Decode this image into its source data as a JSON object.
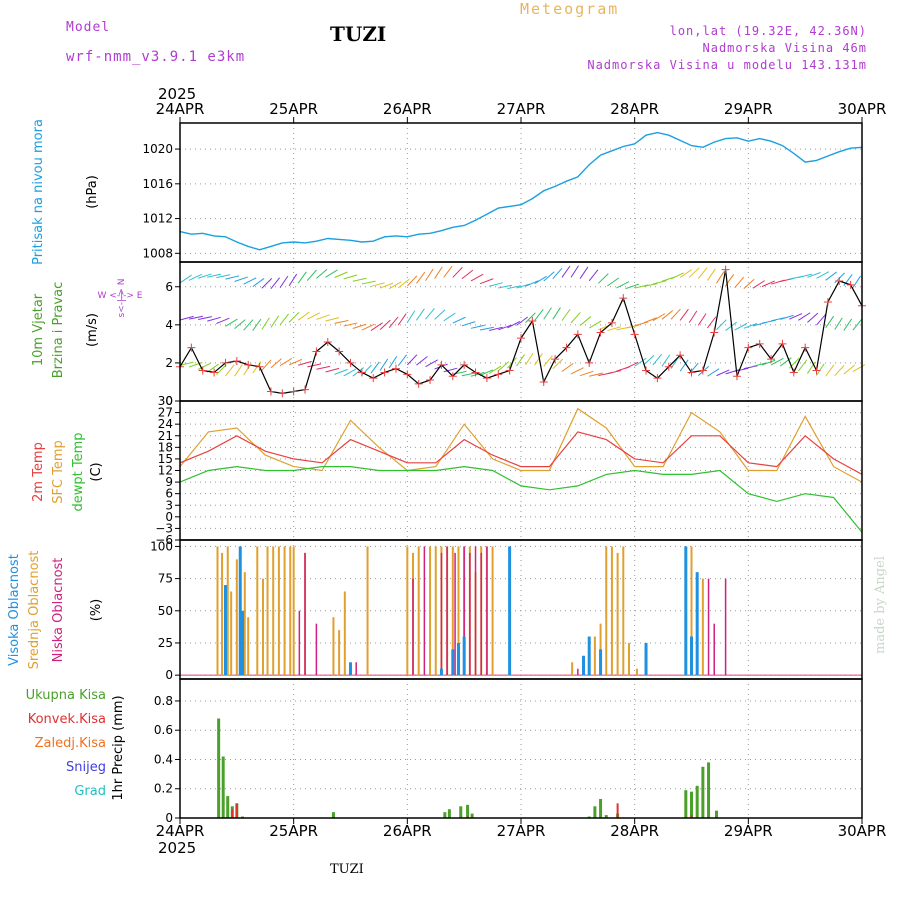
{
  "header": {
    "model_label": "Model",
    "model_name": "wrf-nmm_v3.9.1 e3km",
    "title": "TUZI",
    "meteogram": "Meteogram",
    "lonlat": "lon,lat (19.32E, 42.36N)",
    "elevation": "Nadmorska Visina 46m",
    "elevation_model": "Nadmorska Visina u modelu 143.131m"
  },
  "footer": {
    "station": "TUZI",
    "made_by": "made by Angel"
  },
  "colors": {
    "pressure": "#1aa0e0",
    "temp2m": "#e84040",
    "sfc": "#e0a030",
    "dew": "#30c030",
    "high": "#2090e0",
    "mid": "#e0a030",
    "low": "#d02080",
    "total": "#4aa02a",
    "conv": "#e03030",
    "strat": "#f07020",
    "snow": "#4040e0",
    "grad": "#20c0c0",
    "wind_label": "#b040d0",
    "uvw": "#30b030"
  },
  "chart_data": [
    {
      "id": "pressure",
      "type": "line",
      "ylabel": [
        "Pritisak na nivou mora",
        "(hPa)"
      ],
      "yticks": [
        1008,
        1012,
        1016,
        1020
      ],
      "ylim": [
        1007,
        1023
      ],
      "x_days": [
        "24APR",
        "25APR",
        "26APR",
        "27APR",
        "28APR",
        "29APR",
        "30APR"
      ],
      "year": "2025",
      "series": [
        {
          "name": "SLP",
          "x": [
            0,
            0.1,
            0.2,
            0.3,
            0.4,
            0.5,
            0.6,
            0.7,
            0.8,
            0.9,
            1.0,
            1.1,
            1.2,
            1.3,
            1.4,
            1.5,
            1.6,
            1.7,
            1.8,
            1.9,
            2.0,
            2.1,
            2.2,
            2.3,
            2.4,
            2.5,
            2.6,
            2.7,
            2.8,
            2.9,
            3.0,
            3.1,
            3.2,
            3.3,
            3.4,
            3.5,
            3.6,
            3.7,
            3.8,
            3.9,
            4.0,
            4.1,
            4.2,
            4.3,
            4.4,
            4.5,
            4.6,
            4.7,
            4.8,
            4.9,
            5.0,
            5.1,
            5.2,
            5.3,
            5.4,
            5.5,
            5.6,
            5.7,
            5.8,
            5.9,
            6.0
          ],
          "values": [
            1010.5,
            1010.2,
            1010.3,
            1010.0,
            1009.9,
            1009.3,
            1008.8,
            1008.4,
            1008.8,
            1009.2,
            1009.3,
            1009.2,
            1009.4,
            1009.7,
            1009.6,
            1009.5,
            1009.3,
            1009.4,
            1009.9,
            1010.0,
            1009.9,
            1010.2,
            1010.3,
            1010.6,
            1011.0,
            1011.2,
            1011.8,
            1012.5,
            1013.2,
            1013.4,
            1013.6,
            1014.3,
            1015.2,
            1015.7,
            1016.3,
            1016.8,
            1018.2,
            1019.3,
            1019.8,
            1020.3,
            1020.6,
            1021.6,
            1021.9,
            1021.6,
            1021.0,
            1020.4,
            1020.2,
            1020.8,
            1021.2,
            1021.3,
            1020.9,
            1021.2,
            1020.9,
            1020.4,
            1019.5,
            1018.5,
            1018.7,
            1019.2,
            1019.7,
            1020.1,
            1020.2
          ]
        }
      ]
    },
    {
      "id": "wind",
      "type": "line",
      "ylabel": [
        "10m Vjetar",
        "Brzina i Pravac",
        "(m/s)"
      ],
      "direction_legend": "W <-|-> E",
      "direction_side": "s<-|-> N",
      "yticks": [
        0,
        2,
        4,
        6
      ],
      "ylim": [
        0,
        7.3
      ],
      "series": [
        {
          "name": "Wind speed",
          "x": [
            0,
            0.1,
            0.2,
            0.3,
            0.4,
            0.5,
            0.6,
            0.7,
            0.8,
            0.9,
            1.0,
            1.1,
            1.2,
            1.3,
            1.4,
            1.5,
            1.6,
            1.7,
            1.8,
            1.9,
            2.0,
            2.1,
            2.2,
            2.3,
            2.4,
            2.5,
            2.6,
            2.7,
            2.8,
            2.9,
            3.0,
            3.1,
            3.2,
            3.3,
            3.4,
            3.5,
            3.6,
            3.7,
            3.8,
            3.9,
            4.0,
            4.1,
            4.2,
            4.3,
            4.4,
            4.5,
            4.6,
            4.7,
            4.8,
            4.9,
            5.0,
            5.1,
            5.2,
            5.3,
            5.4,
            5.5,
            5.6,
            5.7,
            5.8,
            5.9,
            6.0
          ],
          "values": [
            1.8,
            2.8,
            1.6,
            1.5,
            2.0,
            2.1,
            1.9,
            1.8,
            0.5,
            0.4,
            0.5,
            0.6,
            2.6,
            3.1,
            2.6,
            2.0,
            1.5,
            1.2,
            1.5,
            1.7,
            1.4,
            0.9,
            1.1,
            1.9,
            1.3,
            1.9,
            1.5,
            1.2,
            1.4,
            1.6,
            3.3,
            4.2,
            1.0,
            2.2,
            2.8,
            3.5,
            2.0,
            3.6,
            4.1,
            5.4,
            3.5,
            1.6,
            1.2,
            1.8,
            2.4,
            1.5,
            1.6,
            3.6,
            6.9,
            1.3,
            2.8,
            3.0,
            2.2,
            3.0,
            1.5,
            2.8,
            1.6,
            5.2,
            6.3,
            6.1,
            5.0
          ]
        }
      ],
      "gust_markers_series": "Wind speed"
    },
    {
      "id": "temperature",
      "type": "line",
      "ylabel": [
        "2m Temp",
        "SFC Temp",
        "dewpt Temp",
        "(C)"
      ],
      "yticks": [
        -6,
        -3,
        0,
        3,
        6,
        9,
        12,
        15,
        18,
        21,
        24,
        27,
        30
      ],
      "ylim": [
        -6,
        30
      ],
      "series": [
        {
          "name": "2m Temp",
          "x": [
            0,
            0.25,
            0.5,
            0.75,
            1.0,
            1.25,
            1.5,
            1.75,
            2.0,
            2.25,
            2.5,
            2.75,
            3.0,
            3.25,
            3.5,
            3.75,
            4.0,
            4.25,
            4.5,
            4.75,
            5.0,
            5.25,
            5.5,
            5.75,
            6.0
          ],
          "values": [
            14,
            17,
            21,
            17,
            15,
            14,
            20,
            17,
            14,
            14,
            20,
            16,
            13,
            13,
            22,
            20,
            15,
            14,
            21,
            21,
            14,
            13,
            21,
            15,
            11
          ]
        },
        {
          "name": "SFC Temp",
          "x": [
            0,
            0.25,
            0.5,
            0.75,
            1.0,
            1.25,
            1.5,
            1.75,
            2.0,
            2.25,
            2.5,
            2.75,
            3.0,
            3.25,
            3.5,
            3.75,
            4.0,
            4.25,
            4.5,
            4.75,
            5.0,
            5.25,
            5.5,
            5.75,
            6.0
          ],
          "values": [
            13,
            22,
            23,
            16,
            13,
            12,
            25,
            18,
            12,
            13,
            24,
            15,
            12,
            12,
            28,
            23,
            13,
            13,
            27,
            22,
            12,
            12,
            26,
            13,
            9
          ]
        },
        {
          "name": "dewpt Temp",
          "x": [
            0,
            0.25,
            0.5,
            0.75,
            1.0,
            1.25,
            1.5,
            1.75,
            2.0,
            2.25,
            2.5,
            2.75,
            3.0,
            3.25,
            3.5,
            3.75,
            4.0,
            4.25,
            4.5,
            4.75,
            5.0,
            5.25,
            5.5,
            5.75,
            6.0
          ],
          "values": [
            9,
            12,
            13,
            12,
            12,
            13,
            13,
            12,
            12,
            12,
            13,
            12,
            8,
            7,
            8,
            11,
            12,
            11,
            11,
            12,
            6,
            4,
            6,
            5,
            -4
          ]
        }
      ]
    },
    {
      "id": "cloud",
      "type": "bar",
      "ylabel": [
        "Visoka Oblacnost",
        "Srednja Oblacnost",
        "Niska Oblacnost",
        "(%)"
      ],
      "yticks": [
        0,
        25,
        50,
        75,
        100
      ],
      "ylim": [
        -3,
        105
      ],
      "series": [
        {
          "name": "Visoka",
          "x": [
            0.4,
            0.53,
            0.55,
            1.5,
            2.3,
            2.4,
            2.45,
            2.5,
            2.9,
            3.55,
            3.6,
            3.7,
            4.1,
            4.45,
            4.5,
            4.55
          ],
          "values": [
            70,
            100,
            50,
            10,
            5,
            20,
            25,
            30,
            100,
            15,
            30,
            20,
            25,
            100,
            30,
            80
          ]
        },
        {
          "name": "Srednja",
          "x": [
            0.33,
            0.37,
            0.42,
            0.45,
            0.5,
            0.57,
            0.6,
            0.68,
            0.73,
            0.77,
            0.82,
            0.87,
            0.92,
            0.97,
            1.0,
            1.1,
            1.35,
            1.4,
            1.45,
            1.65,
            2.0,
            2.05,
            2.1,
            2.2,
            2.25,
            2.3,
            2.35,
            2.4,
            2.45,
            2.5,
            2.55,
            2.6,
            2.65,
            2.7,
            2.75,
            2.9,
            3.45,
            3.55,
            3.65,
            3.7,
            3.75,
            3.8,
            3.85,
            3.9,
            3.95,
            4.02,
            4.5,
            4.55,
            4.6
          ],
          "values": [
            100,
            95,
            100,
            65,
            90,
            80,
            45,
            100,
            75,
            100,
            100,
            100,
            100,
            100,
            100,
            95,
            45,
            35,
            65,
            100,
            100,
            95,
            100,
            100,
            100,
            100,
            100,
            100,
            100,
            100,
            100,
            80,
            100,
            100,
            100,
            75,
            10,
            15,
            30,
            40,
            100,
            100,
            95,
            100,
            25,
            5,
            100,
            70,
            75
          ]
        },
        {
          "name": "Niska",
          "x": [
            0.53,
            1.05,
            1.1,
            1.2,
            1.55,
            2.05,
            2.15,
            2.3,
            2.35,
            2.42,
            2.5,
            2.55,
            2.6,
            2.65,
            2.7,
            3.5,
            3.6,
            4.45,
            4.65,
            4.7,
            4.8
          ],
          "values": [
            45,
            50,
            95,
            40,
            10,
            75,
            100,
            95,
            100,
            95,
            100,
            95,
            100,
            95,
            100,
            5,
            30,
            15,
            75,
            40,
            75
          ]
        }
      ]
    },
    {
      "id": "precip",
      "type": "bar",
      "ylabel": [
        "1hr Precip (mm)"
      ],
      "legend": [
        "Ukupna Kisa",
        "Konvek.Kisa",
        "Zaledj.Kisa",
        "Snijeg",
        "Grad"
      ],
      "yticks": [
        0,
        0.2,
        0.4,
        0.6,
        0.8
      ],
      "ylim": [
        0,
        0.95
      ],
      "series": [
        {
          "name": "Ukupna Kisa",
          "x": [
            0.34,
            0.38,
            0.42,
            0.46,
            0.5,
            0.55,
            1.35,
            2.33,
            2.37,
            2.47,
            2.53,
            2.57,
            3.6,
            3.65,
            3.7,
            3.75,
            3.85,
            4.45,
            4.5,
            4.55,
            4.6,
            4.65,
            4.72
          ],
          "values": [
            0.68,
            0.42,
            0.15,
            0.08,
            0.1,
            0.01,
            0.04,
            0.04,
            0.06,
            0.08,
            0.09,
            0.03,
            0.01,
            0.08,
            0.13,
            0.02,
            0.03,
            0.19,
            0.18,
            0.22,
            0.35,
            0.38,
            0.05
          ]
        },
        {
          "name": "Konvek.Kisa",
          "x": [
            0.46,
            0.5,
            2.53,
            3.85,
            4.5
          ],
          "values": [
            0.06,
            0.1,
            0.01,
            0.1,
            0.02
          ]
        }
      ]
    }
  ]
}
